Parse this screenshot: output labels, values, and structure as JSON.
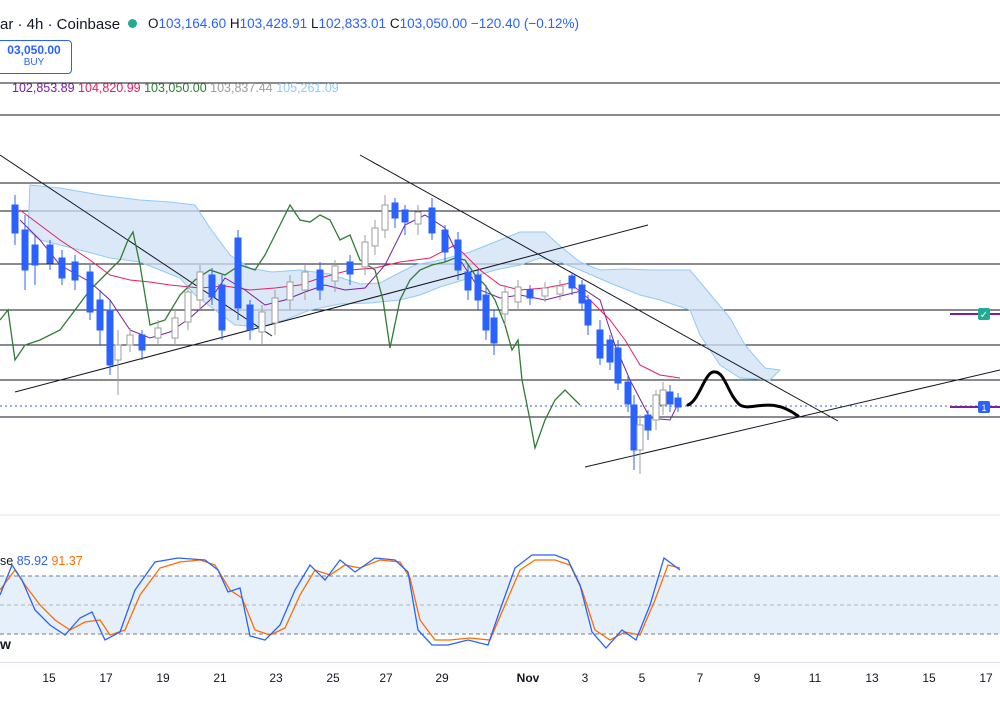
{
  "symbol": {
    "title": "ar · 4h · Coinbase"
  },
  "ohlc": {
    "open_key": "O",
    "open": "103,164.60",
    "high_key": "H",
    "high": "103,428.91",
    "low_key": "L",
    "low": "102,833.01",
    "close_key": "C",
    "close": "103,050.00",
    "change": "−120.40 (−0.12%)"
  },
  "buy_button": {
    "price": "03,050.00",
    "label": "BUY"
  },
  "ichimoku": {
    "values": [
      "102,853.89",
      "104,820.99",
      "103,050.00",
      "103,837.44",
      "105,261.09"
    ],
    "colors": [
      "#7b1fa2",
      "#e91e63",
      "#2e7d32",
      "#9e9e9e",
      "#90caf9"
    ]
  },
  "oscillator": {
    "name": "se",
    "k": "85.92",
    "d": "91.37",
    "bottom_label": "w"
  },
  "x_axis": {
    "ticks": [
      "15",
      "17",
      "19",
      "21",
      "23",
      "25",
      "27",
      "29",
      "Nov",
      "3",
      "5",
      "7",
      "9",
      "11",
      "13",
      "15",
      "17"
    ]
  },
  "markers": {
    "check": "✓",
    "one": "1"
  },
  "colors": {
    "accent": "#2962ff",
    "up": "#2962ff",
    "green_line": "#2e7d32",
    "red_line": "#e91e63",
    "purple_line": "#7b1fa2",
    "cloud": "#cfe0f5",
    "osc_k": "#2962ff",
    "osc_d": "#ff6d00"
  }
}
